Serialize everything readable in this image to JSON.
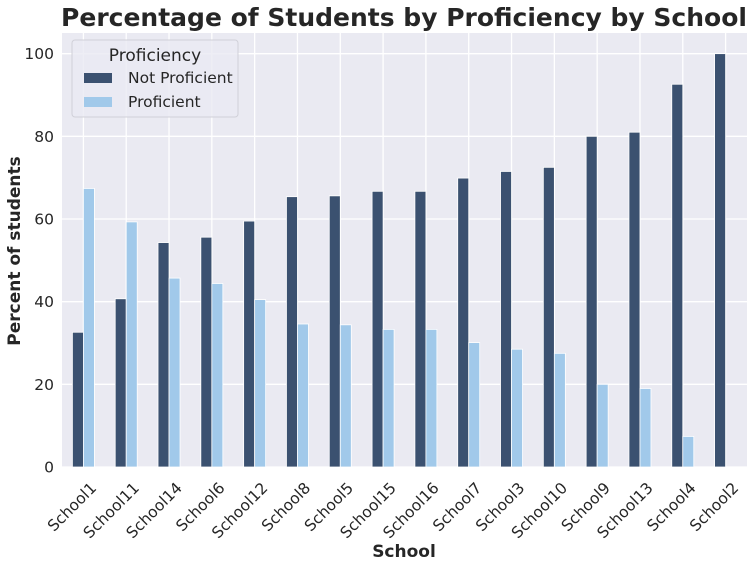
{
  "chart_data": {
    "type": "bar",
    "title": "Percentage of Students by Proficiency by School",
    "xlabel": "School",
    "ylabel": "Percent of students",
    "ylim": [
      0,
      105
    ],
    "yticks": [
      0,
      20,
      40,
      60,
      80,
      100
    ],
    "grid": true,
    "legend": {
      "title": "Proficiency",
      "placement": "top-left"
    },
    "categories": [
      "School1",
      "School11",
      "School14",
      "School6",
      "School12",
      "School8",
      "School5",
      "School15",
      "School16",
      "School7",
      "School3",
      "School10",
      "School9",
      "School13",
      "School4",
      "School2"
    ],
    "series": [
      {
        "name": "Not Proficient",
        "color": "#3b5170",
        "values": [
          32.6,
          40.7,
          54.3,
          55.6,
          59.5,
          65.4,
          65.6,
          66.7,
          66.7,
          69.9,
          71.5,
          72.5,
          80.0,
          81.0,
          92.6,
          100.0
        ]
      },
      {
        "name": "Proficient",
        "color": "#a1c9ea",
        "values": [
          67.4,
          59.3,
          45.7,
          44.4,
          40.5,
          34.6,
          34.4,
          33.3,
          33.3,
          30.1,
          28.5,
          27.5,
          20.0,
          19.0,
          7.4,
          0.0
        ]
      }
    ],
    "background": "#eaeaf2",
    "gridColor": "#ffffff"
  }
}
